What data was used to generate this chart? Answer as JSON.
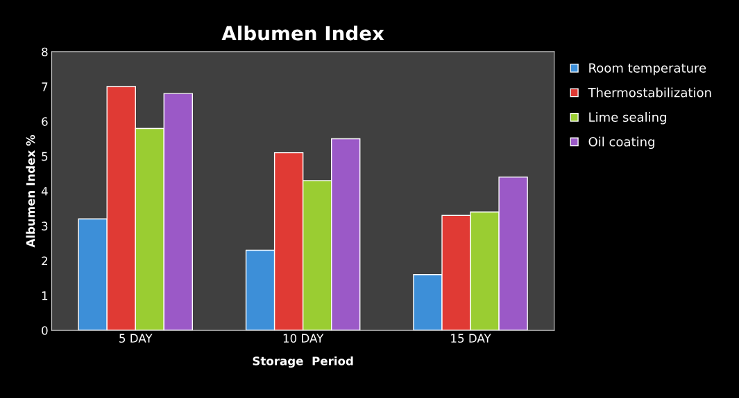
{
  "chart_data": {
    "type": "bar",
    "title": "Albumen Index",
    "xlabel": "Storage  Period",
    "ylabel": "Albumen Index %",
    "categories": [
      "5 DAY",
      "10 DAY",
      "15 DAY"
    ],
    "series": [
      {
        "name": "Room temperature",
        "color": "#3d8fd8",
        "values": [
          3.2,
          2.3,
          1.6
        ]
      },
      {
        "name": "Thermostabilization",
        "color": "#e03a34",
        "values": [
          7.0,
          5.1,
          3.3
        ]
      },
      {
        "name": "Lime sealing",
        "color": "#9acd32",
        "values": [
          5.8,
          4.3,
          3.4
        ]
      },
      {
        "name": "Oil coating",
        "color": "#9b59c7",
        "values": [
          6.8,
          5.5,
          4.4
        ]
      }
    ],
    "ylim": [
      0,
      8
    ],
    "yticks": [
      0,
      1,
      2,
      3,
      4,
      5,
      6,
      7,
      8
    ],
    "grid": false,
    "legend": "right"
  }
}
